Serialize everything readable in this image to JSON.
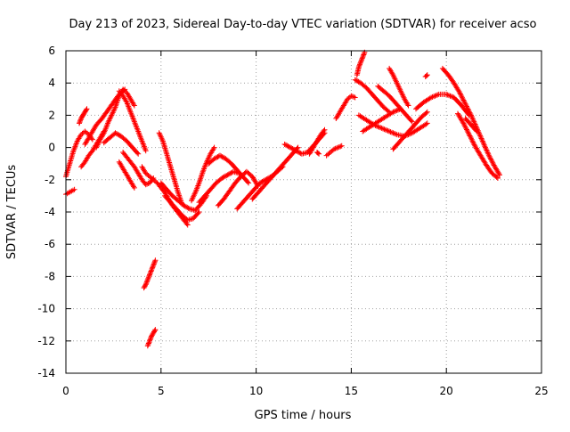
{
  "chart_data": {
    "type": "scatter",
    "title": "Day 213 of 2023, Sidereal Day-to-day VTEC variation (SDTVAR) for receiver acso",
    "xlabel": "GPS time / hours",
    "ylabel": "SDTVAR / TECUs",
    "xlim": [
      0,
      25
    ],
    "ylim": [
      -14,
      6
    ],
    "xticks": [
      0,
      5,
      10,
      15,
      20,
      25
    ],
    "yticks": [
      -14,
      -12,
      -10,
      -8,
      -6,
      -4,
      -2,
      0,
      2,
      4,
      6
    ],
    "grid": true,
    "marker": "+",
    "series": [
      {
        "name": "SDTVAR",
        "color": "#ff0000",
        "tracks": [
          {
            "x": [
              0,
              0.15,
              0.3,
              0.45
            ],
            "y": [
              -2.9,
              -2.8,
              -2.7,
              -2.6
            ]
          },
          {
            "x": [
              0,
              0.2,
              0.4,
              0.6,
              0.8,
              1.0,
              1.2,
              1.4
            ],
            "y": [
              -1.8,
              -1.0,
              -0.2,
              0.4,
              0.8,
              1.0,
              0.8,
              0.5
            ]
          },
          {
            "x": [
              0.7,
              0.8,
              0.9,
              1.0,
              1.1
            ],
            "y": [
              1.5,
              1.8,
              2.0,
              2.2,
              2.4
            ]
          },
          {
            "x": [
              0.8,
              1.0,
              1.2,
              1.4,
              1.6,
              1.8,
              2.0
            ],
            "y": [
              -1.2,
              -0.9,
              -0.5,
              -0.2,
              0.2,
              0.6,
              1.0
            ]
          },
          {
            "x": [
              1.0,
              1.3,
              1.6,
              1.9,
              2.2,
              2.5,
              2.8,
              3.1
            ],
            "y": [
              0.2,
              0.8,
              1.4,
              1.8,
              2.3,
              2.8,
              3.3,
              3.6
            ]
          },
          {
            "x": [
              1.6,
              1.8,
              2.0,
              2.2,
              2.4,
              2.6,
              2.8,
              3.0,
              3.2,
              3.4,
              3.6
            ],
            "y": [
              0.0,
              0.5,
              0.9,
              1.5,
              2.0,
              2.5,
              3.2,
              3.6,
              3.4,
              3.0,
              2.6
            ]
          },
          {
            "x": [
              2.8,
              3.0,
              3.2,
              3.4,
              3.6,
              3.8,
              4.0,
              4.2
            ],
            "y": [
              3.5,
              3.2,
              2.8,
              2.2,
              1.6,
              1.0,
              0.4,
              -0.2
            ]
          },
          {
            "x": [
              2.0,
              2.3,
              2.6,
              2.9,
              3.2,
              3.5,
              3.8
            ],
            "y": [
              0.3,
              0.6,
              0.9,
              0.7,
              0.4,
              0.0,
              -0.4
            ]
          },
          {
            "x": [
              3.0,
              3.2,
              3.4,
              3.6,
              3.8,
              4.0,
              4.2,
              4.4,
              4.6
            ],
            "y": [
              -0.3,
              -0.6,
              -0.9,
              -1.2,
              -1.6,
              -2.0,
              -2.3,
              -2.2,
              -1.9
            ]
          },
          {
            "x": [
              2.8,
              3.0,
              3.2,
              3.4,
              3.6
            ],
            "y": [
              -0.9,
              -1.3,
              -1.7,
              -2.1,
              -2.5
            ]
          },
          {
            "x": [
              4.0,
              4.2,
              4.4,
              4.6,
              4.8,
              5.0,
              5.2,
              5.4,
              5.6,
              5.8,
              6.0,
              6.2,
              6.4
            ],
            "y": [
              -1.2,
              -1.6,
              -1.8,
              -2.0,
              -2.2,
              -2.5,
              -2.8,
              -3.2,
              -3.6,
              -3.9,
              -4.2,
              -4.5,
              -4.8
            ]
          },
          {
            "x": [
              4.1,
              4.2,
              4.3,
              4.4,
              4.5,
              4.6,
              4.7
            ],
            "y": [
              -8.7,
              -8.5,
              -8.2,
              -7.9,
              -7.6,
              -7.3,
              -7.0
            ]
          },
          {
            "x": [
              4.3,
              4.4,
              4.5,
              4.6,
              4.7
            ],
            "y": [
              -12.3,
              -12.0,
              -11.7,
              -11.5,
              -11.3
            ]
          },
          {
            "x": [
              4.9,
              5.1,
              5.3,
              5.5,
              5.7,
              5.9,
              6.1
            ],
            "y": [
              0.9,
              0.4,
              -0.4,
              -1.2,
              -2.0,
              -2.8,
              -3.5
            ]
          },
          {
            "x": [
              5.0,
              5.3,
              5.6,
              5.9,
              6.2,
              6.5,
              6.8,
              7.1,
              7.4
            ],
            "y": [
              -2.2,
              -2.6,
              -3.0,
              -3.3,
              -3.6,
              -3.8,
              -3.9,
              -3.5,
              -3.0
            ]
          },
          {
            "x": [
              5.2,
              5.5,
              5.8,
              6.1,
              6.4,
              6.7,
              7.0
            ],
            "y": [
              -3.0,
              -3.4,
              -3.8,
              -4.2,
              -4.5,
              -4.4,
              -4.0
            ]
          },
          {
            "x": [
              6.6,
              6.8,
              7.0,
              7.2,
              7.4,
              7.6,
              7.8
            ],
            "y": [
              -3.3,
              -2.8,
              -2.2,
              -1.5,
              -0.9,
              -0.4,
              0.0
            ]
          },
          {
            "x": [
              7.0,
              7.3,
              7.6,
              7.9,
              8.2,
              8.5,
              8.8,
              9.1
            ],
            "y": [
              -3.4,
              -3.0,
              -2.6,
              -2.2,
              -1.9,
              -1.7,
              -1.5,
              -1.6
            ]
          },
          {
            "x": [
              7.5,
              7.8,
              8.1,
              8.4,
              8.7,
              9.0,
              9.3,
              9.6
            ],
            "y": [
              -1.0,
              -0.7,
              -0.5,
              -0.7,
              -1.0,
              -1.4,
              -1.8,
              -2.2
            ]
          },
          {
            "x": [
              8.0,
              8.3,
              8.6,
              8.9,
              9.2,
              9.5,
              9.8,
              10.1
            ],
            "y": [
              -3.6,
              -3.2,
              -2.7,
              -2.2,
              -1.8,
              -1.5,
              -1.8,
              -2.4
            ]
          },
          {
            "x": [
              9.0,
              9.3,
              9.6,
              9.9,
              10.2,
              10.5,
              10.8,
              11.1,
              11.4
            ],
            "y": [
              -3.8,
              -3.4,
              -3.0,
              -2.6,
              -2.2,
              -2.0,
              -1.8,
              -1.5,
              -1.2
            ]
          },
          {
            "x": [
              9.8,
              10.1,
              10.4,
              10.7,
              11.0,
              11.3,
              11.6,
              11.9,
              12.2
            ],
            "y": [
              -3.2,
              -2.8,
              -2.4,
              -2.0,
              -1.6,
              -1.2,
              -0.8,
              -0.4,
              0.0
            ]
          },
          {
            "x": [
              11.5,
              11.8,
              12.1,
              12.4,
              12.7,
              13.0,
              13.3,
              13.6
            ],
            "y": [
              0.2,
              0.0,
              -0.2,
              -0.4,
              -0.3,
              0.1,
              0.5,
              0.9
            ]
          },
          {
            "x": [
              12.8,
              13.0,
              13.2,
              13.4,
              13.6
            ],
            "y": [
              -0.4,
              0.0,
              0.4,
              0.8,
              1.1
            ]
          },
          {
            "x": [
              13.7,
              13.9,
              14.1,
              14.3,
              14.5
            ],
            "y": [
              -0.5,
              -0.3,
              -0.1,
              0.0,
              0.1
            ]
          },
          {
            "x": [
              14.2,
              14.4,
              14.6,
              14.8,
              15.0,
              15.2
            ],
            "y": [
              1.8,
              2.2,
              2.6,
              3.0,
              3.2,
              3.1
            ]
          },
          {
            "x": [
              15.3,
              15.4,
              15.5,
              15.6,
              15.7
            ],
            "y": [
              4.5,
              5.0,
              5.3,
              5.6,
              5.9
            ]
          },
          {
            "x": [
              15.2,
              15.5,
              15.8,
              16.1,
              16.4,
              16.7,
              17.0
            ],
            "y": [
              4.2,
              4.0,
              3.7,
              3.3,
              2.9,
              2.5,
              2.2
            ]
          },
          {
            "x": [
              15.4,
              15.8,
              16.2,
              16.6,
              17.0,
              17.4,
              17.8,
              18.2,
              18.6,
              19.0
            ],
            "y": [
              2.0,
              1.7,
              1.4,
              1.2,
              1.0,
              0.8,
              0.7,
              0.9,
              1.2,
              1.5
            ]
          },
          {
            "x": [
              15.6,
              16.0,
              16.4,
              16.8,
              17.2,
              17.6
            ],
            "y": [
              1.0,
              1.3,
              1.6,
              1.9,
              2.2,
              2.4
            ]
          },
          {
            "x": [
              16.4,
              16.7,
              17.0,
              17.3,
              17.6,
              17.9,
              18.2
            ],
            "y": [
              3.8,
              3.5,
              3.2,
              2.8,
              2.4,
              2.0,
              1.6
            ]
          },
          {
            "x": [
              17.0,
              17.2,
              17.4,
              17.6,
              17.8,
              18.0
            ],
            "y": [
              4.9,
              4.5,
              4.0,
              3.5,
              3.0,
              2.6
            ]
          },
          {
            "x": [
              17.2,
              17.5,
              17.8,
              18.1,
              18.4,
              18.7,
              19.0
            ],
            "y": [
              -0.1,
              0.3,
              0.7,
              1.1,
              1.5,
              1.9,
              2.2
            ]
          },
          {
            "x": [
              18.4,
              18.8,
              19.2,
              19.6,
              20.0,
              20.4,
              20.8,
              21.2
            ],
            "y": [
              2.4,
              2.8,
              3.1,
              3.3,
              3.3,
              3.1,
              2.6,
              2.0
            ]
          },
          {
            "x": [
              19.8,
              20.1,
              20.4,
              20.7,
              21.0,
              21.3,
              21.6,
              21.9,
              22.2,
              22.5,
              22.8
            ],
            "y": [
              4.9,
              4.5,
              4.0,
              3.4,
              2.7,
              2.0,
              1.2,
              0.4,
              -0.4,
              -1.1,
              -1.7
            ]
          },
          {
            "x": [
              20.6,
              20.9,
              21.2,
              21.5,
              21.8,
              22.1,
              22.4,
              22.7
            ],
            "y": [
              2.1,
              1.5,
              0.8,
              0.1,
              -0.5,
              -1.1,
              -1.6,
              -1.9
            ]
          },
          {
            "x": [
              21.0,
              21.3,
              21.6
            ],
            "y": [
              1.8,
              1.4,
              1.0
            ]
          },
          {
            "x": [
              18.9,
              19.0
            ],
            "y": [
              4.4,
              4.5
            ]
          },
          {
            "x": [
              13.2,
              13.3
            ],
            "y": [
              -0.3,
              -0.4
            ]
          }
        ]
      }
    ]
  }
}
